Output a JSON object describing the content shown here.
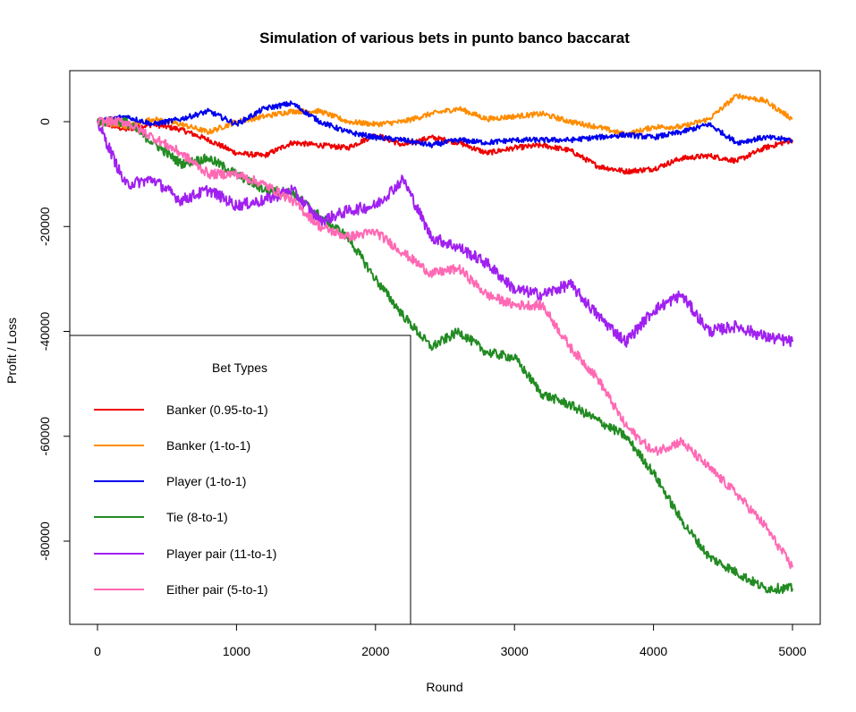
{
  "chart_data": {
    "type": "line",
    "title": "Simulation of various bets in punto banco baccarat",
    "xlabel": "Round",
    "ylabel": "Profit / Loss",
    "xlim": [
      0,
      5000
    ],
    "ylim": [
      -96000,
      9000
    ],
    "x_ticks": [
      0,
      1000,
      2000,
      3000,
      4000,
      5000
    ],
    "y_ticks": [
      0,
      -20000,
      -40000,
      -60000,
      -80000
    ],
    "grid": false,
    "legend": {
      "title": "Bet Types",
      "placement": "bottom-left"
    },
    "x": [
      0,
      200,
      400,
      600,
      800,
      1000,
      1200,
      1400,
      1600,
      1800,
      2000,
      2200,
      2400,
      2600,
      2800,
      3000,
      3200,
      3400,
      3600,
      3800,
      4000,
      4200,
      4400,
      4600,
      4800,
      5000
    ],
    "series": [
      {
        "name": "Banker (0.95-to-1)",
        "color": "#ee0000",
        "values": [
          0,
          -1500,
          -500,
          -1500,
          -3500,
          -6000,
          -6500,
          -4000,
          -4500,
          -5000,
          -2500,
          -4500,
          -3000,
          -4000,
          -6000,
          -5000,
          -4500,
          -5500,
          -8500,
          -9500,
          -9000,
          -7000,
          -6500,
          -7500,
          -5000,
          -3500
        ]
      },
      {
        "name": "Banker (1-to-1)",
        "color": "#ff8c00",
        "values": [
          0,
          -1000,
          500,
          -500,
          -2000,
          0,
          1000,
          2000,
          2000,
          0,
          -500,
          0,
          1500,
          2500,
          500,
          1000,
          1500,
          0,
          -1000,
          -2500,
          -1000,
          -1000,
          500,
          5000,
          4000,
          500
        ]
      },
      {
        "name": "Player (1-to-1)",
        "color": "#0000ee",
        "values": [
          0,
          1000,
          -500,
          500,
          2000,
          -500,
          2500,
          3500,
          0,
          -2000,
          -3000,
          -3500,
          -4500,
          -3500,
          -4000,
          -3500,
          -3500,
          -3500,
          -3000,
          -2500,
          -3000,
          -2000,
          -500,
          -4000,
          -3000,
          -3500
        ]
      },
      {
        "name": "Tie (8-to-1)",
        "color": "#228b22",
        "values": [
          0,
          0,
          -4000,
          -8000,
          -7000,
          -10000,
          -13000,
          -13500,
          -18000,
          -22000,
          -30000,
          -37000,
          -43000,
          -40000,
          -44000,
          -45000,
          -52000,
          -54000,
          -57000,
          -60000,
          -67000,
          -76000,
          -83000,
          -86000,
          -89000,
          -89000
        ]
      },
      {
        "name": "Player pair (11-to-1)",
        "color": "#a020f0",
        "values": [
          0,
          -12000,
          -11000,
          -15000,
          -13000,
          -16000,
          -15000,
          -13000,
          -19000,
          -17000,
          -16000,
          -11000,
          -22000,
          -24000,
          -27000,
          -32000,
          -33000,
          -31000,
          -37000,
          -42000,
          -36000,
          -33000,
          -40000,
          -39000,
          -41000,
          -42000
        ]
      },
      {
        "name": "Either pair (5-to-1)",
        "color": "#ff69b4",
        "values": [
          0,
          0,
          -3000,
          -6000,
          -10000,
          -10000,
          -12000,
          -15000,
          -20000,
          -22000,
          -21000,
          -25000,
          -29000,
          -28000,
          -33000,
          -35000,
          -35000,
          -43000,
          -49000,
          -58000,
          -63000,
          -61000,
          -66000,
          -71000,
          -77000,
          -85000
        ]
      }
    ]
  }
}
